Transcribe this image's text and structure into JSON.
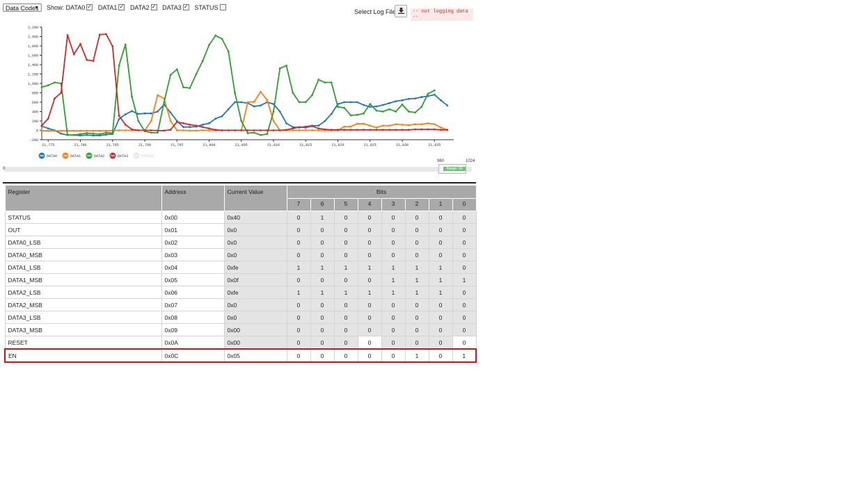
{
  "toolbar": {
    "mode_select": "Data Codes",
    "show_label": "Show:",
    "show_items": [
      {
        "label": "DATA0",
        "checked": true
      },
      {
        "label": "DATA1",
        "checked": true
      },
      {
        "label": "DATA2",
        "checked": true
      },
      {
        "label": "DATA3",
        "checked": true
      },
      {
        "label": "STATUS",
        "checked": false
      }
    ],
    "log_label": "Select Log File:",
    "download_icon": "download-icon",
    "log_status": "-- not logging data --"
  },
  "chart_data": {
    "type": "line",
    "ylim": [
      -200,
      2200
    ],
    "yticks": [
      "2,200",
      "2,000",
      "1,800",
      "1,600",
      "1,400",
      "1,200",
      "1,000",
      "800",
      "600",
      "400",
      "200",
      "0",
      "-200"
    ],
    "xlim": [
      21774,
      21838
    ],
    "xticks": [
      "21,775",
      "21,780",
      "21,785",
      "21,790",
      "21,795",
      "21,800",
      "21,805",
      "21,810",
      "21,815",
      "21,820",
      "21,825",
      "21,830",
      "21,835"
    ],
    "xtick_values": [
      21775,
      21780,
      21785,
      21790,
      21795,
      21800,
      21805,
      21810,
      21815,
      21820,
      21825,
      21830,
      21835
    ],
    "x_start": 21774,
    "legend_position": "bottom-left",
    "series": [
      {
        "name": "DATA0",
        "color": "#1f77b4",
        "values": [
          90,
          40,
          0,
          -70,
          -100,
          -100,
          -110,
          -100,
          -110,
          -110,
          -90,
          -80,
          240,
          340,
          410,
          350,
          360,
          360,
          400,
          550,
          380,
          200,
          70,
          70,
          80,
          120,
          150,
          250,
          300,
          450,
          600,
          600,
          580,
          510,
          530,
          600,
          560,
          400,
          150,
          70,
          60,
          80,
          100,
          100,
          200,
          350,
          560,
          600,
          600,
          600,
          540,
          500,
          510,
          540,
          580,
          620,
          640,
          670,
          680,
          710,
          730,
          760,
          640,
          530
        ]
      },
      {
        "name": "DATA1",
        "color": "#ff7f0e",
        "values": [
          -10,
          -10,
          -10,
          -10,
          -10,
          -10,
          -10,
          -10,
          -10,
          -10,
          -10,
          -5,
          0,
          0,
          0,
          0,
          0,
          200,
          750,
          680,
          200,
          0,
          0,
          -5,
          -5,
          0,
          0,
          0,
          0,
          0,
          0,
          0,
          600,
          610,
          820,
          650,
          200,
          0,
          0,
          0,
          0,
          0,
          0,
          0,
          0,
          0,
          0,
          80,
          80,
          140,
          140,
          100,
          60,
          100,
          100,
          130,
          120,
          110,
          130,
          130,
          150,
          130,
          60,
          10
        ]
      },
      {
        "name": "DATA2",
        "color": "#2ca02c",
        "values": [
          920,
          960,
          1020,
          1000,
          -100,
          -100,
          -80,
          -60,
          -70,
          -80,
          -50,
          -60,
          1380,
          1830,
          720,
          200,
          -20,
          -50,
          -50,
          600,
          1180,
          1300,
          920,
          900,
          1200,
          1480,
          1820,
          2020,
          1950,
          1680,
          800,
          200,
          -60,
          -50,
          -100,
          -80,
          400,
          1320,
          1380,
          800,
          600,
          600,
          750,
          1080,
          1020,
          1020,
          500,
          480,
          320,
          330,
          360,
          560,
          420,
          400,
          450,
          400,
          550,
          400,
          380,
          500,
          780,
          850,
          null,
          null
        ]
      },
      {
        "name": "DATA3",
        "color": "#d62728",
        "values": [
          100,
          250,
          680,
          800,
          2030,
          1620,
          1840,
          1500,
          1480,
          2040,
          2050,
          1790,
          310,
          120,
          20,
          0,
          0,
          0,
          -5,
          -5,
          10,
          180,
          150,
          120,
          100,
          70,
          40,
          10,
          0,
          0,
          0,
          0,
          0,
          0,
          0,
          0,
          0,
          0,
          10,
          40,
          70,
          60,
          90,
          40,
          20,
          10,
          10,
          10,
          10,
          10,
          10,
          10,
          10,
          10,
          10,
          10,
          10,
          10,
          20,
          20,
          20,
          20,
          10,
          10
        ]
      },
      {
        "name": "STATUS",
        "color": "#cccccc",
        "hidden": true,
        "values": []
      }
    ]
  },
  "slider": {
    "min_label": "0",
    "max_label": "1024",
    "left_label": "960",
    "range_label": "Range: 64"
  },
  "table": {
    "headers": {
      "register": "Register",
      "address": "Address",
      "value": "Current Value",
      "bits": "Bits"
    },
    "bit_labels": [
      "7",
      "6",
      "5",
      "4",
      "3",
      "2",
      "1",
      "0"
    ],
    "rows": [
      {
        "name": "STATUS",
        "addr": "0x00",
        "val": "0x40",
        "bits": [
          "0",
          "1",
          "0",
          "0",
          "0",
          "0",
          "0",
          "0"
        ],
        "w": [
          false,
          false,
          false,
          false,
          false,
          false,
          false,
          false
        ]
      },
      {
        "name": "OUT",
        "addr": "0x01",
        "val": "0x0",
        "bits": [
          "0",
          "0",
          "0",
          "0",
          "0",
          "0",
          "0",
          "0"
        ],
        "w": [
          false,
          false,
          false,
          false,
          false,
          false,
          false,
          false
        ]
      },
      {
        "name": "DATA0_LSB",
        "addr": "0x02",
        "val": "0x0",
        "bits": [
          "0",
          "0",
          "0",
          "0",
          "0",
          "0",
          "0",
          "0"
        ],
        "w": [
          false,
          false,
          false,
          false,
          false,
          false,
          false,
          false
        ]
      },
      {
        "name": "DATA0_MSB",
        "addr": "0x03",
        "val": "0x0",
        "bits": [
          "0",
          "0",
          "0",
          "0",
          "0",
          "0",
          "0",
          "0"
        ],
        "w": [
          false,
          false,
          false,
          false,
          false,
          false,
          false,
          false
        ]
      },
      {
        "name": "DATA1_LSB",
        "addr": "0x04",
        "val": "0xfe",
        "bits": [
          "1",
          "1",
          "1",
          "1",
          "1",
          "1",
          "1",
          "0"
        ],
        "w": [
          false,
          false,
          false,
          false,
          false,
          false,
          false,
          false
        ]
      },
      {
        "name": "DATA1_MSB",
        "addr": "0x05",
        "val": "0x0f",
        "bits": [
          "0",
          "0",
          "0",
          "0",
          "1",
          "1",
          "1",
          "1"
        ],
        "w": [
          false,
          false,
          false,
          false,
          false,
          false,
          false,
          false
        ]
      },
      {
        "name": "DATA2_LSB",
        "addr": "0x06",
        "val": "0xfe",
        "bits": [
          "1",
          "1",
          "1",
          "1",
          "1",
          "1",
          "1",
          "0"
        ],
        "w": [
          false,
          false,
          false,
          false,
          false,
          false,
          false,
          false
        ]
      },
      {
        "name": "DATA2_MSB",
        "addr": "0x07",
        "val": "0x0",
        "bits": [
          "0",
          "0",
          "0",
          "0",
          "0",
          "0",
          "0",
          "0"
        ],
        "w": [
          false,
          false,
          false,
          false,
          false,
          false,
          false,
          false
        ]
      },
      {
        "name": "DATA3_LSB",
        "addr": "0x08",
        "val": "0x0",
        "bits": [
          "0",
          "0",
          "0",
          "0",
          "0",
          "0",
          "0",
          "0"
        ],
        "w": [
          false,
          false,
          false,
          false,
          false,
          false,
          false,
          false
        ]
      },
      {
        "name": "DATA3_MSB",
        "addr": "0x09",
        "val": "0x00",
        "bits": [
          "0",
          "0",
          "0",
          "0",
          "0",
          "0",
          "0",
          "0"
        ],
        "w": [
          false,
          false,
          false,
          false,
          false,
          false,
          false,
          false
        ]
      },
      {
        "name": "RESET",
        "addr": "0x0A",
        "val": "0x00",
        "bits": [
          "0",
          "0",
          "0",
          "0",
          "0",
          "0",
          "0",
          "0"
        ],
        "w": [
          false,
          false,
          false,
          true,
          false,
          false,
          false,
          true
        ]
      },
      {
        "name": "EN",
        "addr": "0x0C",
        "val": "0x05",
        "bits": [
          "0",
          "0",
          "0",
          "0",
          "0",
          "1",
          "0",
          "1"
        ],
        "w": [
          true,
          true,
          true,
          true,
          true,
          true,
          true,
          true
        ],
        "highlight": true
      }
    ]
  }
}
